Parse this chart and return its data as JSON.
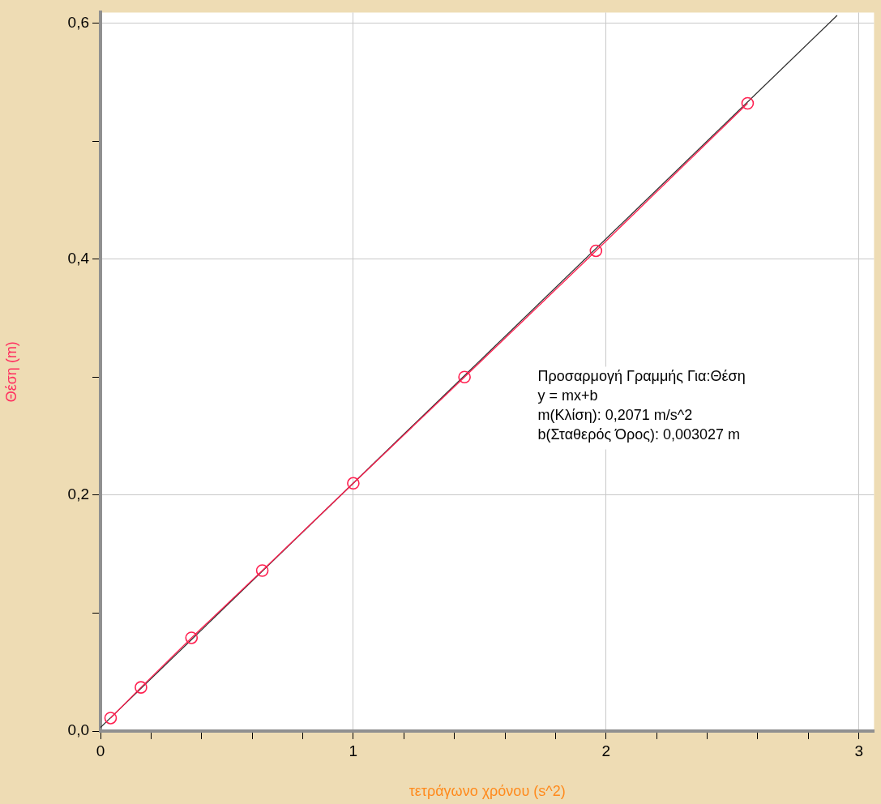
{
  "chart_data": {
    "type": "scatter",
    "xlabel": "τετράγωνο χρόνου (s^2)",
    "ylabel": "Θέση (m)",
    "xlim": [
      0,
      3.06
    ],
    "ylim": [
      0,
      0.609
    ],
    "xticks": [
      0,
      {
        "value": 0.2,
        "label": null
      },
      {
        "value": 0.4,
        "label": null
      },
      {
        "value": 0.6,
        "label": null
      },
      {
        "value": 0.8,
        "label": null
      },
      1,
      {
        "value": 1.2,
        "label": null
      },
      {
        "value": 1.4,
        "label": null
      },
      {
        "value": 1.6,
        "label": null
      },
      {
        "value": 1.8,
        "label": null
      },
      2,
      {
        "value": 2.2,
        "label": null
      },
      {
        "value": 2.4,
        "label": null
      },
      {
        "value": 2.6,
        "label": null
      },
      {
        "value": 2.8,
        "label": null
      },
      3
    ],
    "yticks": [
      {
        "value": 0,
        "label": "0,0"
      },
      {
        "value": 0.1,
        "label": null
      },
      {
        "value": 0.2,
        "label": "0,2"
      },
      {
        "value": 0.3,
        "label": null
      },
      {
        "value": 0.4,
        "label": "0,4"
      },
      {
        "value": 0.5,
        "label": null
      },
      {
        "value": 0.6,
        "label": "0,6"
      }
    ],
    "grid": true,
    "legend": false,
    "series": [
      {
        "type": "line",
        "marker": "circle",
        "color": "#ff2050",
        "x": [
          0.04,
          0.16,
          0.36,
          0.64,
          1.0,
          1.44,
          1.96,
          2.56
        ],
        "values": [
          0.011,
          0.037,
          0.079,
          0.136,
          0.21,
          0.3,
          0.407,
          0.532
        ]
      },
      {
        "type": "line",
        "marker": "none",
        "color": "#303030",
        "x": [
          0,
          2.914
        ],
        "values": [
          0.003,
          0.6065
        ]
      }
    ],
    "annotations": [
      "Προσαρμογή Γραμμής Για:Θέση",
      "y = mx+b",
      "m(Κλίση): 0,2071 m/s^2",
      "b(Σταθερός Όρος): 0,003027 m"
    ]
  }
}
